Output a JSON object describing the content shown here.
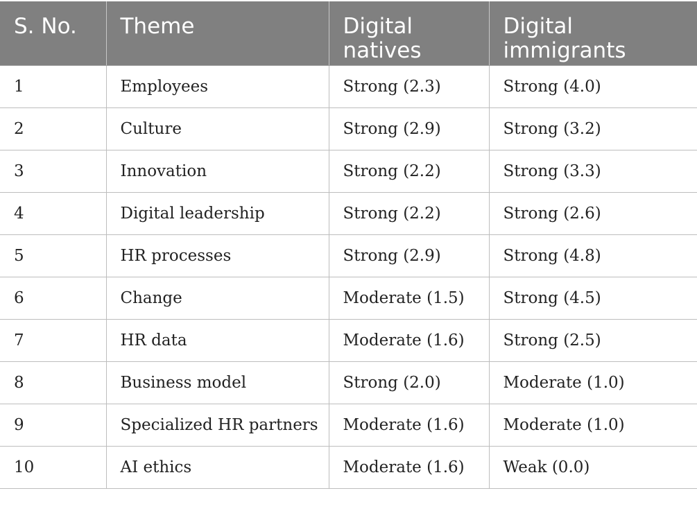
{
  "table": {
    "headers": [
      "S. No.",
      "Theme",
      "Digital natives",
      "Digital immigrants"
    ],
    "rows": [
      [
        "1",
        "Employees",
        "Strong (2.3)",
        "Strong (4.0)"
      ],
      [
        "2",
        "Culture",
        "Strong (2.9)",
        "Strong (3.2)"
      ],
      [
        "3",
        "Innovation",
        "Strong (2.2)",
        "Strong (3.3)"
      ],
      [
        "4",
        "Digital leadership",
        "Strong (2.2)",
        "Strong (2.6)"
      ],
      [
        "5",
        "HR processes",
        "Strong (2.9)",
        "Strong (4.8)"
      ],
      [
        "6",
        "Change",
        "Moderate (1.5)",
        "Strong (4.5)"
      ],
      [
        "7",
        "HR data",
        "Moderate (1.6)",
        "Strong (2.5)"
      ],
      [
        "8",
        "Business model",
        "Strong (2.0)",
        "Moderate (1.0)"
      ],
      [
        "9",
        "Specialized HR partners",
        "Moderate (1.6)",
        "Moderate (1.0)"
      ],
      [
        "10",
        "AI ethics",
        "Moderate (1.6)",
        "Weak (0.0)"
      ]
    ]
  },
  "colors": {
    "header_bg": "#808080",
    "header_text": "#ffffff",
    "border": "#bdbdbd"
  }
}
